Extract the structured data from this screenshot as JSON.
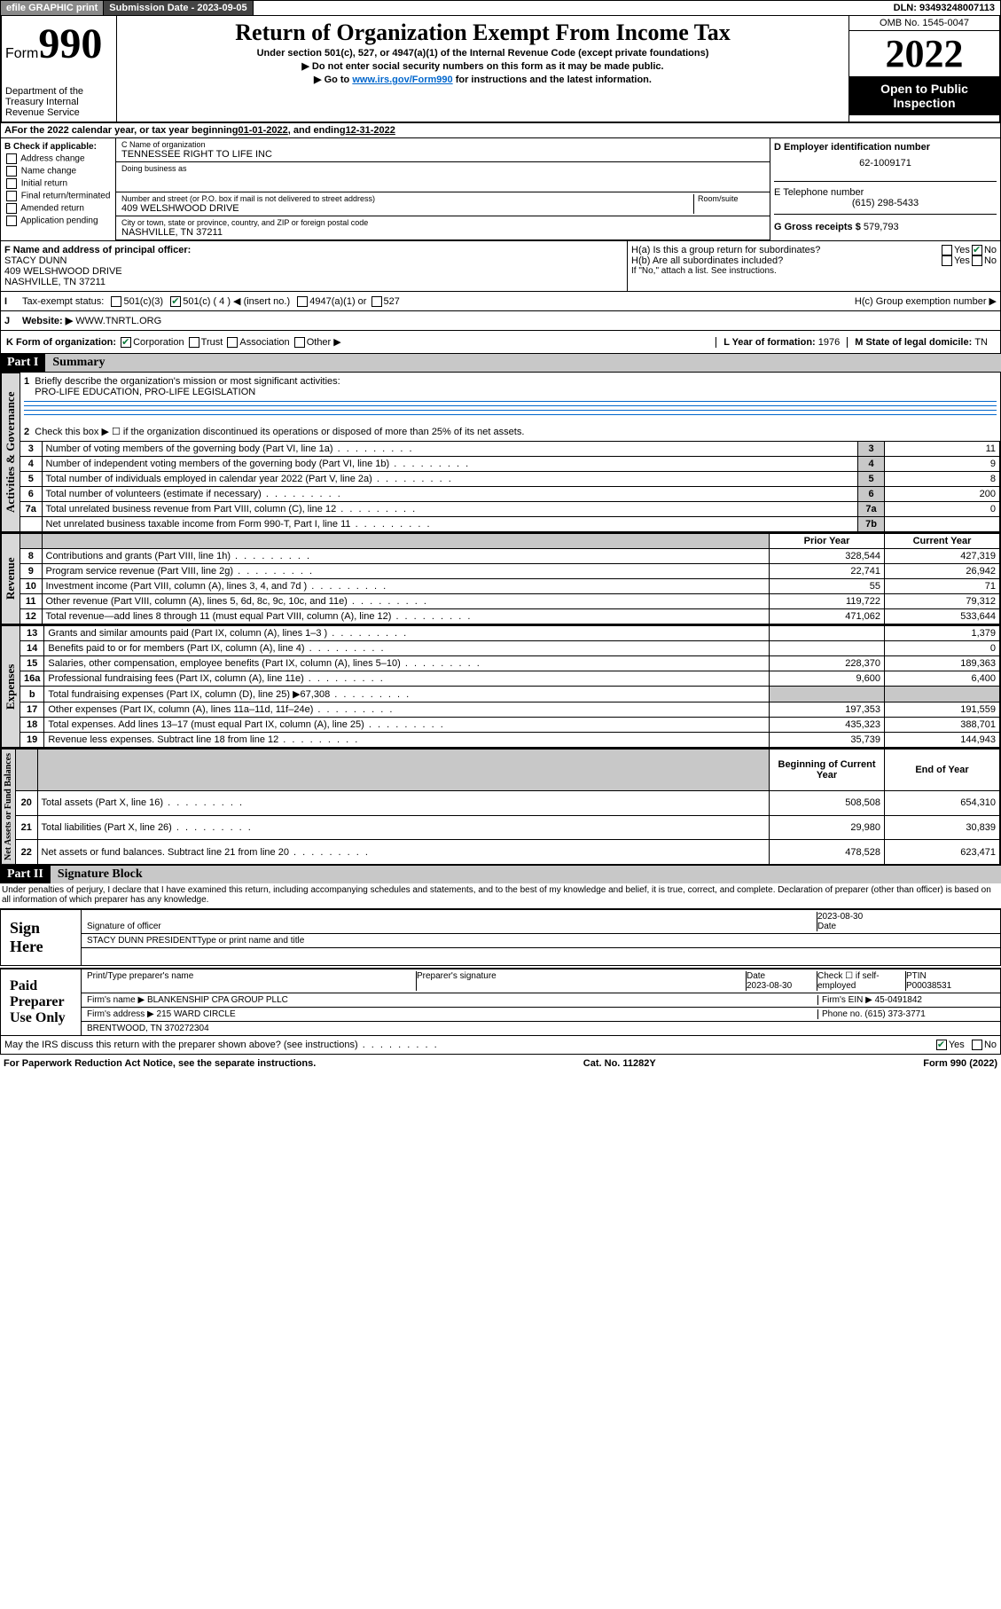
{
  "topbar": {
    "efile": "efile GRAPHIC print",
    "subdate_label": "Submission Date - ",
    "subdate": "2023-09-05",
    "dln_label": "DLN: ",
    "dln": "93493248007113"
  },
  "header": {
    "form_word": "Form",
    "form_num": "990",
    "title": "Return of Organization Exempt From Income Tax",
    "sub1": "Under section 501(c), 527, or 4947(a)(1) of the Internal Revenue Code (except private foundations)",
    "sub2": "▶ Do not enter social security numbers on this form as it may be made public.",
    "sub3_pre": "▶ Go to ",
    "sub3_link": "www.irs.gov/Form990",
    "sub3_post": " for instructions and the latest information.",
    "dept": "Department of the Treasury\nInternal Revenue Service",
    "omb": "OMB No. 1545-0047",
    "year": "2022",
    "inspect": "Open to Public Inspection"
  },
  "A": {
    "text_pre": "For the 2022 calendar year, or tax year beginning ",
    "begin": "01-01-2022",
    "mid": " , and ending ",
    "end": "12-31-2022"
  },
  "B": {
    "label": "B Check if applicable:",
    "items": [
      "Address change",
      "Name change",
      "Initial return",
      "Final return/terminated",
      "Amended return",
      "Application pending"
    ]
  },
  "C": {
    "name_label": "C Name of organization",
    "name": "TENNESSEE RIGHT TO LIFE INC",
    "dba_label": "Doing business as",
    "street_label": "Number and street (or P.O. box if mail is not delivered to street address)",
    "room_label": "Room/suite",
    "street": "409 WELSHWOOD DRIVE",
    "city_label": "City or town, state or province, country, and ZIP or foreign postal code",
    "city": "NASHVILLE, TN  37211"
  },
  "D": {
    "label": "D Employer identification number",
    "value": "62-1009171"
  },
  "E": {
    "label": "E Telephone number",
    "value": "(615) 298-5433"
  },
  "G": {
    "label": "G Gross receipts $ ",
    "value": "579,793"
  },
  "F": {
    "label": "F Name and address of principal officer:",
    "name": "STACY DUNN",
    "street": "409 WELSHWOOD DRIVE",
    "city": "NASHVILLE, TN  37211"
  },
  "H": {
    "a": "H(a)  Is this a group return for subordinates?",
    "b": "H(b)  Are all subordinates included?",
    "b_note": "If \"No,\" attach a list. See instructions.",
    "c": "H(c)  Group exemption number ▶",
    "yes": "Yes",
    "no": "No"
  },
  "I": {
    "label": "Tax-exempt status:",
    "o1": "501(c)(3)",
    "o2": "501(c) ( 4 ) ◀ (insert no.)",
    "o3": "4947(a)(1) or",
    "o4": "527"
  },
  "J": {
    "label": "Website: ▶",
    "value": "WWW.TNRTL.ORG"
  },
  "K": {
    "label": "K Form of organization:",
    "o1": "Corporation",
    "o2": "Trust",
    "o3": "Association",
    "o4": "Other ▶"
  },
  "L": {
    "label": "L Year of formation: ",
    "value": "1976"
  },
  "M": {
    "label": "M State of legal domicile: ",
    "value": "TN"
  },
  "partI": {
    "hdr": "Part I",
    "title": "Summary",
    "l1": "Briefly describe the organization's mission or most significant activities:",
    "l1v": "PRO-LIFE EDUCATION, PRO-LIFE LEGISLATION",
    "l2": "Check this box ▶ ☐  if the organization discontinued its operations or disposed of more than 25% of its net assets.",
    "rows_gov": [
      {
        "n": "3",
        "t": "Number of voting members of the governing body (Part VI, line 1a)",
        "b": "3",
        "v": "11"
      },
      {
        "n": "4",
        "t": "Number of independent voting members of the governing body (Part VI, line 1b)",
        "b": "4",
        "v": "9"
      },
      {
        "n": "5",
        "t": "Total number of individuals employed in calendar year 2022 (Part V, line 2a)",
        "b": "5",
        "v": "8"
      },
      {
        "n": "6",
        "t": "Total number of volunteers (estimate if necessary)",
        "b": "6",
        "v": "200"
      },
      {
        "n": "7a",
        "t": "Total unrelated business revenue from Part VIII, column (C), line 12",
        "b": "7a",
        "v": "0"
      },
      {
        "n": "",
        "t": "Net unrelated business taxable income from Form 990-T, Part I, line 11",
        "b": "7b",
        "v": ""
      }
    ],
    "col_prior": "Prior Year",
    "col_curr": "Current Year",
    "rows_rev": [
      {
        "n": "8",
        "t": "Contributions and grants (Part VIII, line 1h)",
        "p": "328,544",
        "c": "427,319"
      },
      {
        "n": "9",
        "t": "Program service revenue (Part VIII, line 2g)",
        "p": "22,741",
        "c": "26,942"
      },
      {
        "n": "10",
        "t": "Investment income (Part VIII, column (A), lines 3, 4, and 7d )",
        "p": "55",
        "c": "71"
      },
      {
        "n": "11",
        "t": "Other revenue (Part VIII, column (A), lines 5, 6d, 8c, 9c, 10c, and 11e)",
        "p": "119,722",
        "c": "79,312"
      },
      {
        "n": "12",
        "t": "Total revenue—add lines 8 through 11 (must equal Part VIII, column (A), line 12)",
        "p": "471,062",
        "c": "533,644"
      }
    ],
    "rows_exp": [
      {
        "n": "13",
        "t": "Grants and similar amounts paid (Part IX, column (A), lines 1–3 )",
        "p": "",
        "c": "1,379"
      },
      {
        "n": "14",
        "t": "Benefits paid to or for members (Part IX, column (A), line 4)",
        "p": "",
        "c": "0"
      },
      {
        "n": "15",
        "t": "Salaries, other compensation, employee benefits (Part IX, column (A), lines 5–10)",
        "p": "228,370",
        "c": "189,363"
      },
      {
        "n": "16a",
        "t": "Professional fundraising fees (Part IX, column (A), line 11e)",
        "p": "9,600",
        "c": "6,400"
      },
      {
        "n": "b",
        "t": "Total fundraising expenses (Part IX, column (D), line 25) ▶67,308",
        "p": "GRAY",
        "c": "GRAY"
      },
      {
        "n": "17",
        "t": "Other expenses (Part IX, column (A), lines 11a–11d, 11f–24e)",
        "p": "197,353",
        "c": "191,559"
      },
      {
        "n": "18",
        "t": "Total expenses. Add lines 13–17 (must equal Part IX, column (A), line 25)",
        "p": "435,323",
        "c": "388,701"
      },
      {
        "n": "19",
        "t": "Revenue less expenses. Subtract line 18 from line 12",
        "p": "35,739",
        "c": "144,943"
      }
    ],
    "col_boy": "Beginning of Current Year",
    "col_eoy": "End of Year",
    "rows_na": [
      {
        "n": "20",
        "t": "Total assets (Part X, line 16)",
        "p": "508,508",
        "c": "654,310"
      },
      {
        "n": "21",
        "t": "Total liabilities (Part X, line 26)",
        "p": "29,980",
        "c": "30,839"
      },
      {
        "n": "22",
        "t": "Net assets or fund balances. Subtract line 21 from line 20",
        "p": "478,528",
        "c": "623,471"
      }
    ],
    "side_gov": "Activities & Governance",
    "side_rev": "Revenue",
    "side_exp": "Expenses",
    "side_na": "Net Assets or Fund Balances"
  },
  "partII": {
    "hdr": "Part II",
    "title": "Signature Block",
    "decl": "Under penalties of perjury, I declare that I have examined this return, including accompanying schedules and statements, and to the best of my knowledge and belief, it is true, correct, and complete. Declaration of preparer (other than officer) is based on all information of which preparer has any knowledge.",
    "sign_here": "Sign Here",
    "sig_officer": "Signature of officer",
    "sig_date": "2023-08-30",
    "date_label": "Date",
    "officer_name": "STACY DUNN  PRESIDENT",
    "type_name": "Type or print name and title",
    "paid": "Paid Preparer Use Only",
    "prep_name_label": "Print/Type preparer's name",
    "prep_sig_label": "Preparer's signature",
    "prep_date_label": "Date",
    "prep_date": "2023-08-30",
    "check_self": "Check ☐ if self-employed",
    "ptin_label": "PTIN",
    "ptin": "P00038531",
    "firm_name_label": "Firm's name    ▶ ",
    "firm_name": "BLANKENSHIP CPA GROUP PLLC",
    "firm_ein_label": "Firm's EIN ▶ ",
    "firm_ein": "45-0491842",
    "firm_addr_label": "Firm's address ▶ ",
    "firm_addr1": "215 WARD CIRCLE",
    "firm_addr2": "BRENTWOOD, TN  370272304",
    "phone_label": "Phone no. ",
    "phone": "(615) 373-3771",
    "may_irs": "May the IRS discuss this return with the preparer shown above? (see instructions)",
    "yes": "Yes",
    "no": "No"
  },
  "footer": {
    "left": "For Paperwork Reduction Act Notice, see the separate instructions.",
    "mid": "Cat. No. 11282Y",
    "right": "Form 990 (2022)"
  }
}
